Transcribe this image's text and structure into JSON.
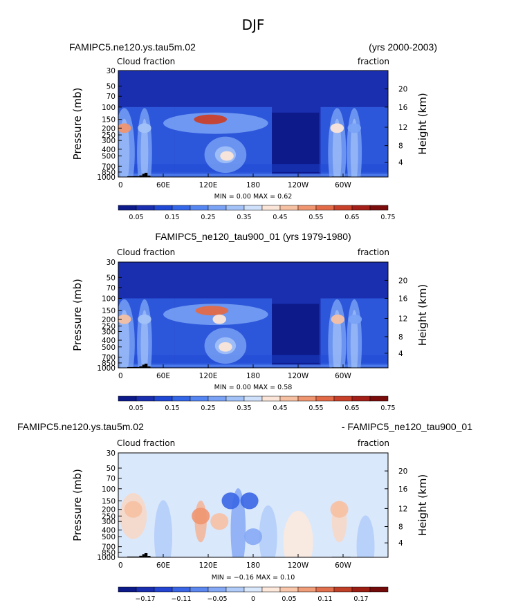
{
  "figure": {
    "title": "DJF"
  },
  "panels": [
    {
      "case_title": "FAMIPC5.ne120.ys.tau5m.02",
      "right_title": "(yrs 2000-2003)",
      "left_label": "Cloud fraction",
      "right_label": "fraction",
      "ylabel": "Pressure (mb)",
      "ylabel_right": "Height (km)",
      "stats": "MIN =    0.00   MAX =    0.62",
      "colorbar_labels": [
        "0.05",
        "0.15",
        "0.25",
        "0.35",
        "0.45",
        "0.55",
        "0.65",
        "0.75"
      ]
    },
    {
      "case_title": "FAMIPC5_ne120_tau900_01 (yrs 1979-1980)",
      "right_title": "",
      "left_label": "Cloud fraction",
      "right_label": "fraction",
      "ylabel": "Pressure (mb)",
      "ylabel_right": "Height (km)",
      "stats": "MIN =    0.00   MAX =    0.58",
      "colorbar_labels": [
        "0.05",
        "0.15",
        "0.25",
        "0.35",
        "0.45",
        "0.55",
        "0.65",
        "0.75"
      ]
    },
    {
      "case_title": "FAMIPC5.ne120.ys.tau5m.02",
      "right_title": "- FAMIPC5_ne120_tau900_01",
      "left_label": "Cloud fraction",
      "right_label": "fraction",
      "ylabel": "Pressure (mb)",
      "ylabel_right": "Height (km)",
      "stats": "MIN =  −0.16   MAX =    0.10",
      "colorbar_labels": [
        "−0.17",
        "−0.11",
        "−0.05",
        "0",
        "0.05",
        "0.11",
        "0.17"
      ]
    }
  ],
  "axes": {
    "x_ticks": [
      "0",
      "60E",
      "120E",
      "180",
      "120W",
      "60W"
    ],
    "p_ticks": [
      "30",
      "50",
      "70",
      "100",
      "150",
      "200",
      "250",
      "300",
      "400",
      "500",
      "700",
      "850",
      "1000"
    ],
    "z_ticks": [
      "20",
      "16",
      "12",
      "8",
      "4"
    ]
  },
  "colors": {
    "abs_scale": [
      "#0c1a8a",
      "#1a2fb0",
      "#1f48d4",
      "#3466e8",
      "#5586f2",
      "#7aa3f5",
      "#a3c2f8",
      "#cfe0fb",
      "#fbe5d8",
      "#f6c0a3",
      "#ef9570",
      "#e36a47",
      "#c8402a",
      "#a31f17",
      "#7a0c0c"
    ],
    "diff_scale": [
      "#0c1a8a",
      "#1a2fb0",
      "#2345d2",
      "#3a66e6",
      "#5d88f0",
      "#86a9f5",
      "#b1ccf9",
      "#dae8fc",
      "#fde9dc",
      "#f8c7ac",
      "#f09d7a",
      "#e0704e",
      "#bf4027",
      "#9c1d12",
      "#740b0b"
    ],
    "topography": "#000000"
  },
  "chart_data": [
    {
      "type": "heatmap",
      "title": "FAMIPC5.ne120.ys.tau5m.02",
      "xlabel": "",
      "ylabel": "Pressure (mb)",
      "x_ticks": [
        "0",
        "60E",
        "120E",
        "180",
        "120W",
        "60W"
      ],
      "y_ticks": [
        30,
        50,
        70,
        100,
        150,
        200,
        250,
        300,
        400,
        500,
        700,
        850,
        1000
      ],
      "zmin": 0.0,
      "zmax": 0.62,
      "colorbar_levels": [
        0.05,
        0.1,
        0.15,
        0.2,
        0.25,
        0.3,
        0.35,
        0.4,
        0.45,
        0.5,
        0.55,
        0.6,
        0.65,
        0.7,
        0.75
      ],
      "features": [
        {
          "lon": 8,
          "p": 200,
          "value": 0.5
        },
        {
          "lon": 35,
          "p": 200,
          "value": 0.35
        },
        {
          "lon": 123,
          "p": 150,
          "value": 0.62
        },
        {
          "lon": 145,
          "p": 500,
          "value": 0.4
        },
        {
          "lon": 292,
          "p": 200,
          "value": 0.42
        },
        {
          "lon": 315,
          "p": 200,
          "value": 0.3
        }
      ]
    },
    {
      "type": "heatmap",
      "title": "FAMIPC5_ne120_tau900_01 (yrs 1979-1980)",
      "xlabel": "",
      "ylabel": "Pressure (mb)",
      "x_ticks": [
        "0",
        "60E",
        "120E",
        "180",
        "120W",
        "60W"
      ],
      "y_ticks": [
        30,
        50,
        70,
        100,
        150,
        200,
        250,
        300,
        400,
        500,
        700,
        850,
        1000
      ],
      "zmin": 0.0,
      "zmax": 0.58,
      "colorbar_levels": [
        0.05,
        0.1,
        0.15,
        0.2,
        0.25,
        0.3,
        0.35,
        0.4,
        0.45,
        0.5,
        0.55,
        0.6,
        0.65,
        0.7,
        0.75
      ],
      "features": [
        {
          "lon": 8,
          "p": 200,
          "value": 0.45
        },
        {
          "lon": 35,
          "p": 200,
          "value": 0.35
        },
        {
          "lon": 125,
          "p": 150,
          "value": 0.58
        },
        {
          "lon": 135,
          "p": 200,
          "value": 0.4
        },
        {
          "lon": 143,
          "p": 500,
          "value": 0.42
        },
        {
          "lon": 293,
          "p": 200,
          "value": 0.45
        },
        {
          "lon": 316,
          "p": 200,
          "value": 0.3
        }
      ]
    },
    {
      "type": "heatmap",
      "title": "FAMIPC5.ne120.ys.tau5m.02 - FAMIPC5_ne120_tau900_01",
      "xlabel": "",
      "ylabel": "Pressure (mb)",
      "x_ticks": [
        "0",
        "60E",
        "120E",
        "180",
        "120W",
        "60W"
      ],
      "y_ticks": [
        30,
        50,
        70,
        100,
        150,
        200,
        250,
        300,
        400,
        500,
        700,
        850,
        1000
      ],
      "zmin": -0.16,
      "zmax": 0.1,
      "colorbar_levels": [
        -0.17,
        -0.14,
        -0.11,
        -0.08,
        -0.05,
        -0.02,
        0,
        0.02,
        0.05,
        0.08,
        0.11,
        0.14,
        0.17
      ],
      "features": [
        {
          "lon": 20,
          "p": 200,
          "value": 0.06
        },
        {
          "lon": 110,
          "p": 250,
          "value": 0.1
        },
        {
          "lon": 135,
          "p": 300,
          "value": 0.05
        },
        {
          "lon": 150,
          "p": 150,
          "value": -0.16
        },
        {
          "lon": 175,
          "p": 150,
          "value": -0.12
        },
        {
          "lon": 180,
          "p": 500,
          "value": -0.06
        },
        {
          "lon": 295,
          "p": 200,
          "value": 0.04
        }
      ]
    }
  ]
}
